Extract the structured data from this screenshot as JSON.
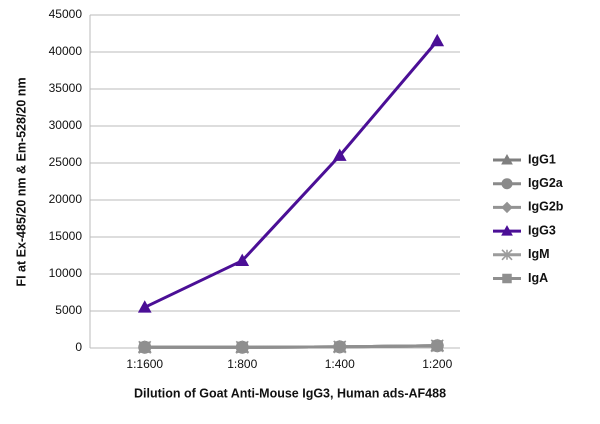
{
  "chart_data": {
    "type": "line",
    "y_label": "FI at Ex-485/20 nm & Em-528/20 nm",
    "x_label": "Dilution of Goat Anti-Mouse IgG3, Human ads-AF488",
    "categories": [
      "1:1600",
      "1:800",
      "1:400",
      "1:200"
    ],
    "series": [
      {
        "name": "IgG1",
        "color": "#7f7f7f",
        "marker": "triangle",
        "values": [
          100,
          100,
          150,
          300
        ]
      },
      {
        "name": "IgG2a",
        "color": "#8a8a8a",
        "marker": "circle",
        "values": [
          100,
          100,
          150,
          300
        ]
      },
      {
        "name": "IgG2b",
        "color": "#939393",
        "marker": "diamond",
        "values": [
          100,
          100,
          150,
          300
        ]
      },
      {
        "name": "IgG3",
        "color": "#4b0f96",
        "marker": "triangle",
        "values": [
          5500,
          11800,
          26000,
          41500
        ]
      },
      {
        "name": "IgM",
        "color": "#9c9c9c",
        "marker": "star",
        "values": [
          100,
          100,
          150,
          300
        ]
      },
      {
        "name": "IgA",
        "color": "#8f8f8f",
        "marker": "square",
        "values": [
          100,
          100,
          150,
          300
        ]
      }
    ],
    "ylim": [
      0,
      45000
    ],
    "yticks": [
      0,
      5000,
      10000,
      15000,
      20000,
      25000,
      30000,
      35000,
      40000,
      45000
    ],
    "grid": true
  }
}
